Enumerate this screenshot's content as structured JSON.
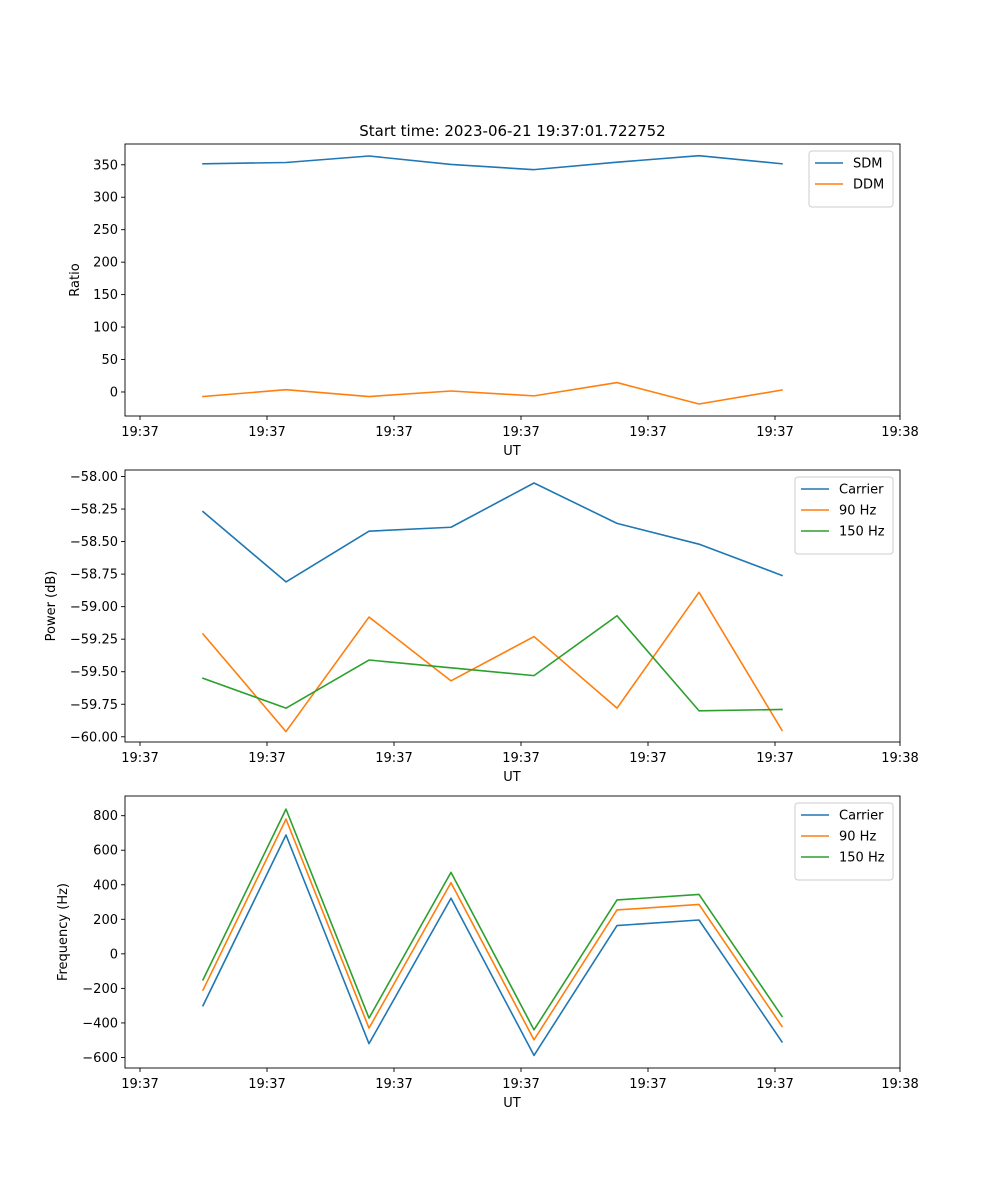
{
  "title": "Start time: 2023-06-21 19:37:01.722752",
  "colors": {
    "blue": "#1f77b4",
    "orange": "#ff7f0e",
    "green": "#2ca02c"
  },
  "chart_data": [
    {
      "type": "line",
      "title": "Start time: 2023-06-21 19:37:01.722752",
      "xlabel": "UT",
      "ylabel": "Ratio",
      "x_tick_labels": [
        "19:37",
        "19:37",
        "19:37",
        "19:37",
        "19:37",
        "19:37",
        "19:38"
      ],
      "y_ticks": [
        0,
        50,
        100,
        150,
        200,
        250,
        300,
        350
      ],
      "ylim": [
        -37,
        382
      ],
      "legend": "top-right",
      "series": [
        {
          "name": "SDM",
          "color": "#1f77b4",
          "values": [
            351.5,
            353.5,
            363.5,
            350.5,
            342.5,
            354,
            364,
            351.5
          ]
        },
        {
          "name": "DDM",
          "color": "#ff7f0e",
          "values": [
            -7,
            3.5,
            -7,
            1.5,
            -6,
            14.5,
            -18.5,
            3
          ]
        }
      ]
    },
    {
      "type": "line",
      "xlabel": "UT",
      "ylabel": "Power (dB)",
      "x_tick_labels": [
        "19:37",
        "19:37",
        "19:37",
        "19:37",
        "19:37",
        "19:37",
        "19:38"
      ],
      "y_ticks": [
        -60.0,
        -59.75,
        -59.5,
        -59.25,
        -59.0,
        -58.75,
        -58.5,
        -58.25,
        -58.0
      ],
      "y_tick_labels": [
        "−60.00",
        "−59.75",
        "−59.50",
        "−59.25",
        "−59.00",
        "−58.75",
        "−58.50",
        "−58.25",
        "−58.00"
      ],
      "ylim": [
        -60.04,
        -57.95
      ],
      "legend": "top-right",
      "series": [
        {
          "name": "Carrier",
          "color": "#1f77b4",
          "values": [
            -58.27,
            -58.81,
            -58.42,
            -58.39,
            -58.05,
            -58.36,
            -58.52,
            -58.76
          ]
        },
        {
          "name": "90 Hz",
          "color": "#ff7f0e",
          "values": [
            -59.21,
            -59.96,
            -59.08,
            -59.57,
            -59.23,
            -59.78,
            -58.89,
            -59.95
          ]
        },
        {
          "name": "150 Hz",
          "color": "#2ca02c",
          "values": [
            -59.55,
            -59.78,
            -59.41,
            -59.47,
            -59.53,
            -59.07,
            -59.8,
            -59.79
          ]
        }
      ]
    },
    {
      "type": "line",
      "xlabel": "UT",
      "ylabel": "Frequency (Hz)",
      "x_tick_labels": [
        "19:37",
        "19:37",
        "19:37",
        "19:37",
        "19:37",
        "19:37",
        "19:38"
      ],
      "y_ticks": [
        -600,
        -400,
        -200,
        0,
        200,
        400,
        600,
        800
      ],
      "y_tick_labels": [
        "−600",
        "−400",
        "−200",
        "0",
        "200",
        "400",
        "600",
        "800"
      ],
      "ylim": [
        -661,
        914
      ],
      "legend": "top-right",
      "series": [
        {
          "name": "Carrier",
          "color": "#1f77b4",
          "values": [
            -300,
            688,
            -520,
            322,
            -588,
            164,
            196,
            -510
          ]
        },
        {
          "name": "90 Hz",
          "color": "#ff7f0e",
          "values": [
            -210,
            780,
            -430,
            412,
            -498,
            254,
            286,
            -420
          ]
        },
        {
          "name": "150 Hz",
          "color": "#2ca02c",
          "values": [
            -150,
            838,
            -372,
            472,
            -440,
            312,
            344,
            -362
          ]
        }
      ]
    }
  ]
}
